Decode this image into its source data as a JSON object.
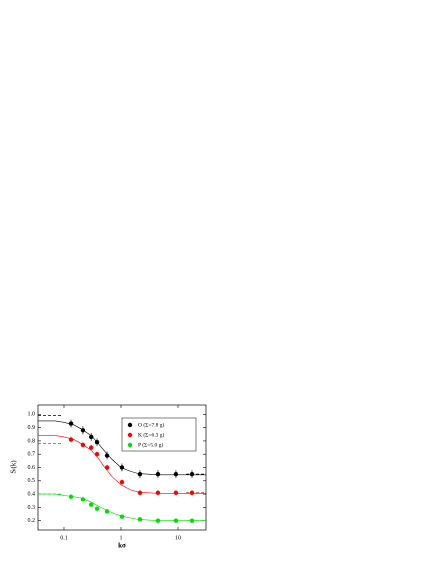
{
  "chart_data": {
    "type": "scatter",
    "xlabel": "kσ",
    "ylabel": "Sₗ(k)",
    "xlim": [
      0.035,
      31
    ],
    "ylim": [
      0.13,
      1.07
    ],
    "xscale": "log",
    "xticks": [
      0.1,
      1,
      10
    ],
    "yticks": [
      0.2,
      0.3,
      0.4,
      0.5,
      0.6,
      0.7,
      0.8,
      0.9,
      {
        "value": 1,
        "label": "1.0"
      }
    ],
    "legend": "upper right",
    "x": [
      0.133,
      0.215,
      0.3,
      0.38,
      0.57,
      1.04,
      2.15,
      4.45,
      9.2,
      17.6
    ],
    "fit_x": [
      0.035,
      0.07,
      0.1,
      0.15,
      0.2,
      0.3,
      0.4,
      0.5,
      0.7,
      1,
      1.5,
      2,
      3,
      5,
      10,
      31
    ],
    "series": [
      {
        "name": "O (Σ=7.8 g)",
        "color": "#000000",
        "values": [
          0.93,
          0.88,
          0.83,
          0.79,
          0.69,
          0.6,
          0.55,
          0.55,
          0.55,
          0.55
        ],
        "errors": [
          0.03,
          0.03,
          0.03,
          0.03,
          0.03,
          0.03,
          0.03,
          0.03,
          0.03,
          0.03
        ],
        "fit_values": [
          0.95,
          0.95,
          0.94,
          0.92,
          0.89,
          0.84,
          0.78,
          0.73,
          0.66,
          0.6,
          0.57,
          0.555,
          0.55,
          0.545,
          0.545,
          0.545
        ],
        "low_limit": 0.99,
        "high_limit": 0.55
      },
      {
        "name": "K (Σ=6.3 g)",
        "color": "#ff0000",
        "values": [
          0.81,
          0.77,
          0.75,
          0.7,
          0.6,
          0.49,
          0.41,
          0.41,
          0.41,
          0.41
        ],
        "errors": [
          0.02,
          0.02,
          0.02,
          0.02,
          0.02,
          0.02,
          0.02,
          0.02,
          0.02,
          0.02
        ],
        "fit_values": [
          0.84,
          0.84,
          0.83,
          0.81,
          0.78,
          0.73,
          0.67,
          0.61,
          0.53,
          0.47,
          0.43,
          0.415,
          0.41,
          0.405,
          0.405,
          0.405
        ],
        "low_limit": 0.78,
        "high_limit": 0.41
      },
      {
        "name": "P (Σ=5.0 g)",
        "color": "#00e000",
        "values": [
          0.38,
          0.36,
          0.32,
          0.29,
          0.27,
          0.23,
          0.21,
          0.2,
          0.2,
          0.2
        ],
        "errors": [
          0.01,
          0.01,
          0.01,
          0.01,
          0.01,
          0.01,
          0.01,
          0.01,
          0.01,
          0.01
        ],
        "fit_values": [
          0.4,
          0.4,
          0.39,
          0.38,
          0.37,
          0.34,
          0.31,
          0.29,
          0.26,
          0.235,
          0.22,
          0.21,
          0.205,
          0.2,
          0.2,
          0.2
        ],
        "low_limit": 0.4,
        "high_limit": 0.2
      }
    ]
  }
}
